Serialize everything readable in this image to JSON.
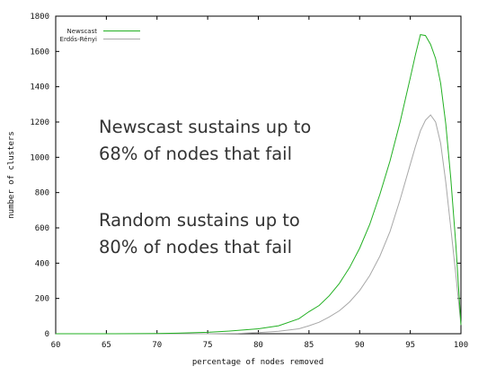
{
  "chart_data": {
    "type": "line",
    "title": "",
    "xlabel": "percentage of nodes removed",
    "ylabel": "number of clusters",
    "xlim": [
      60,
      100
    ],
    "ylim": [
      0,
      1800
    ],
    "grid": false,
    "legend_position": "top-left",
    "x_ticks": [
      "60",
      "65",
      "70",
      "75",
      "80",
      "85",
      "90",
      "95",
      "100"
    ],
    "y_ticks": [
      "0",
      "200",
      "400",
      "600",
      "800",
      "1000",
      "1200",
      "1400",
      "1600",
      "1800"
    ],
    "colors": {
      "Newscast": "#22b022",
      "Erdős-Rényi": "#a8a8a8"
    },
    "series": [
      {
        "name": "Newscast",
        "x": [
          60,
          65,
          70,
          72,
          75,
          77,
          80,
          82,
          84,
          85,
          86,
          87,
          88,
          89,
          90,
          91,
          92,
          93,
          94,
          95,
          95.5,
          96,
          96.5,
          97,
          97.5,
          98,
          98.5,
          99,
          99.5,
          100
        ],
        "values": [
          0,
          0,
          1,
          3,
          8,
          15,
          28,
          45,
          85,
          125,
          160,
          215,
          285,
          375,
          485,
          620,
          790,
          980,
          1200,
          1450,
          1580,
          1695,
          1690,
          1640,
          1560,
          1420,
          1190,
          880,
          500,
          50
        ]
      },
      {
        "name": "Erdős-Rényi",
        "x": [
          60,
          70,
          75,
          78,
          80,
          82,
          84,
          85,
          86,
          87,
          88,
          89,
          90,
          91,
          92,
          93,
          94,
          95,
          95.5,
          96,
          96.5,
          97,
          97.5,
          98,
          98.5,
          99,
          99.5,
          100
        ],
        "values": [
          0,
          0,
          0,
          2,
          6,
          14,
          28,
          45,
          65,
          95,
          130,
          180,
          245,
          330,
          440,
          580,
          760,
          960,
          1060,
          1150,
          1210,
          1240,
          1200,
          1080,
          860,
          600,
          330,
          50
        ]
      }
    ],
    "annotations": [
      {
        "lines": [
          "Newscast sustains up to",
          "68% of nodes that fail"
        ]
      },
      {
        "lines": [
          "Random sustains up to",
          "80% of nodes that fail"
        ]
      }
    ]
  }
}
